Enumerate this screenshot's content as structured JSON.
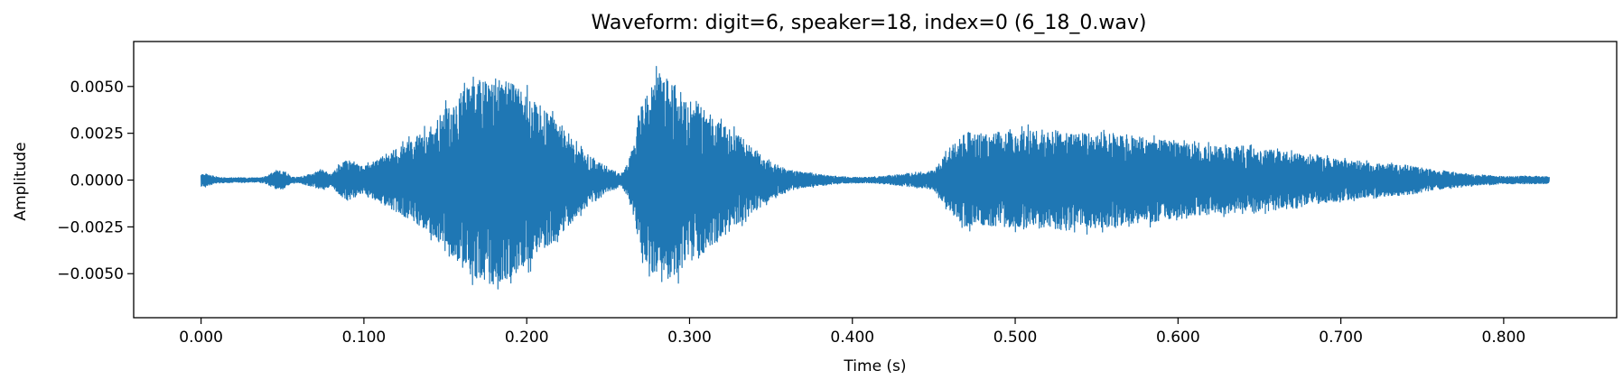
{
  "chart_data": {
    "type": "line",
    "title": "Waveform: digit=6, speaker=18, index=0  (6_18_0.wav)",
    "xlabel": "Time (s)",
    "ylabel": "Amplitude",
    "xlim": [
      -0.0414,
      0.8694
    ],
    "ylim": [
      -0.00735,
      0.0074
    ],
    "x_ticks": [
      0.0,
      0.1,
      0.2,
      0.3,
      0.4,
      0.5,
      0.6,
      0.7,
      0.8
    ],
    "x_tick_labels": [
      "0.000",
      "0.100",
      "0.200",
      "0.300",
      "0.400",
      "0.500",
      "0.600",
      "0.700",
      "0.800"
    ],
    "y_ticks": [
      0.005,
      0.0025,
      0.0,
      -0.0025,
      -0.005
    ],
    "y_tick_labels": [
      "0.0050",
      "0.0025",
      "0.0000",
      "−0.0025",
      "−0.0050"
    ],
    "grid": false,
    "series": [
      {
        "color": "#1f77b4",
        "duration": 0.828,
        "envelope": {
          "t": [
            0.0,
            0.003,
            0.01,
            0.02,
            0.035,
            0.04,
            0.045,
            0.05,
            0.055,
            0.06,
            0.07,
            0.075,
            0.08,
            0.085,
            0.09,
            0.1,
            0.11,
            0.12,
            0.13,
            0.14,
            0.15,
            0.16,
            0.17,
            0.18,
            0.19,
            0.2,
            0.21,
            0.22,
            0.23,
            0.24,
            0.25,
            0.258,
            0.262,
            0.266,
            0.27,
            0.28,
            0.29,
            0.3,
            0.31,
            0.32,
            0.33,
            0.34,
            0.35,
            0.36,
            0.37,
            0.38,
            0.39,
            0.4,
            0.41,
            0.42,
            0.43,
            0.44,
            0.45,
            0.46,
            0.47,
            0.48,
            0.5,
            0.52,
            0.54,
            0.56,
            0.58,
            0.6,
            0.62,
            0.64,
            0.66,
            0.68,
            0.7,
            0.72,
            0.74,
            0.76,
            0.78,
            0.8,
            0.81,
            0.82,
            0.828
          ],
          "amp": [
            0.0003,
            0.00035,
            0.00015,
            0.00012,
            0.00012,
            0.0002,
            0.00045,
            0.0005,
            0.0002,
            0.00015,
            0.0004,
            0.00055,
            0.0003,
            0.0008,
            0.0011,
            0.0007,
            0.0012,
            0.0017,
            0.0022,
            0.0028,
            0.0038,
            0.0047,
            0.0053,
            0.0055,
            0.0052,
            0.0046,
            0.0038,
            0.003,
            0.002,
            0.0012,
            0.0007,
            0.0003,
            0.0009,
            0.002,
            0.0038,
            0.0056,
            0.0052,
            0.0044,
            0.0038,
            0.003,
            0.0024,
            0.0017,
            0.001,
            0.0006,
            0.0004,
            0.0003,
            0.0002,
            0.00015,
            0.00015,
            0.0002,
            0.0003,
            0.0004,
            0.0005,
            0.0017,
            0.0026,
            0.0024,
            0.0026,
            0.0027,
            0.0026,
            0.0025,
            0.0023,
            0.002,
            0.0018,
            0.0017,
            0.0016,
            0.0013,
            0.0011,
            0.0009,
            0.0008,
            0.0005,
            0.0003,
            0.0002,
            0.0002,
            0.0002,
            0.00018
          ]
        }
      }
    ]
  }
}
